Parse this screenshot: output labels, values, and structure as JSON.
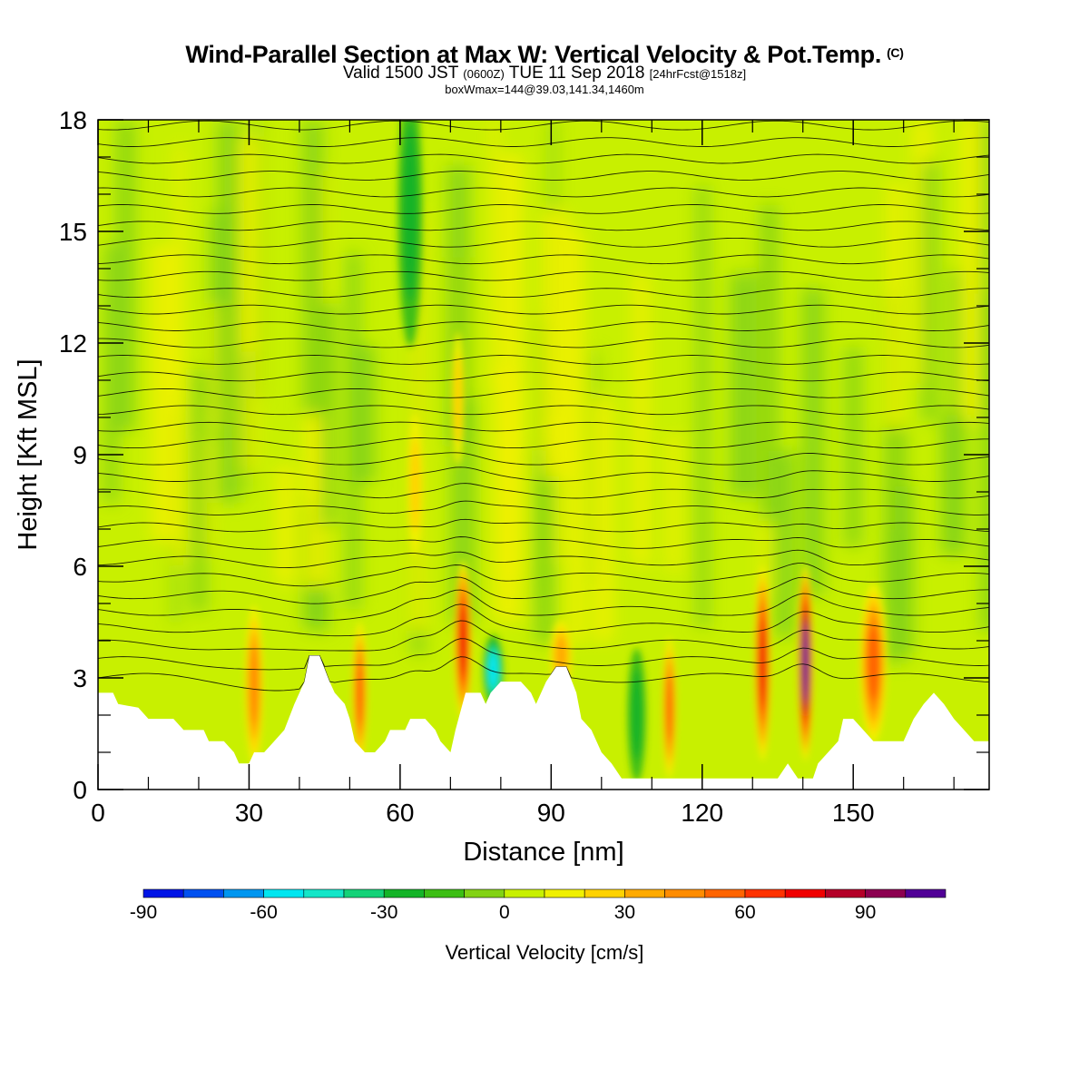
{
  "title": {
    "main": "Wind-Parallel Section at Max W: Vertical Velocity & Pot.Temp.",
    "copyright": "(C)",
    "valid_prefix": "Valid 1500 JST",
    "valid_z": "(0600Z)",
    "valid_date": "TUE 11 Sep 2018",
    "fcst": "[24hrFcst@1518z]",
    "box": "boxWmax=144@39.03,141.34,1460m"
  },
  "chart_data": {
    "type": "heatmap",
    "xlabel": "Distance [nm]",
    "ylabel": "Height [Kft MSL]",
    "xlim": [
      0,
      177
    ],
    "ylim": [
      0,
      18
    ],
    "xticks": [
      0,
      30,
      60,
      90,
      120,
      150
    ],
    "yticks": [
      0,
      3,
      6,
      9,
      12,
      15,
      18
    ],
    "colorbar": {
      "label": "Vertical Velocity [cm/s]",
      "ticks": [
        -90,
        -60,
        -30,
        0,
        30,
        60,
        90
      ],
      "bins": [
        -90,
        -80,
        -70,
        -60,
        -50,
        -40,
        -30,
        -20,
        -10,
        0,
        10,
        20,
        30,
        40,
        50,
        60,
        70,
        80,
        90,
        100,
        110
      ],
      "colors": [
        "#0014e6",
        "#0050f0",
        "#0096f0",
        "#00e6f0",
        "#14e6c8",
        "#14d278",
        "#14b428",
        "#3cbe14",
        "#82d214",
        "#c8f000",
        "#f0f000",
        "#ffd200",
        "#ffaa00",
        "#ff8c00",
        "#ff6400",
        "#ff3200",
        "#f00000",
        "#b40028",
        "#8c0050",
        "#500096"
      ]
    },
    "terrain_kft": [
      [
        0,
        2.6
      ],
      [
        3,
        2.6
      ],
      [
        4,
        2.3
      ],
      [
        8,
        2.2
      ],
      [
        10,
        1.9
      ],
      [
        15,
        1.9
      ],
      [
        17,
        1.6
      ],
      [
        21,
        1.6
      ],
      [
        22,
        1.3
      ],
      [
        25,
        1.3
      ],
      [
        27,
        1.0
      ],
      [
        28,
        0.7
      ],
      [
        30,
        0.7
      ],
      [
        31,
        1.0
      ],
      [
        33,
        1.0
      ],
      [
        35,
        1.3
      ],
      [
        37,
        1.6
      ],
      [
        39,
        2.3
      ],
      [
        41,
        2.9
      ],
      [
        42,
        3.6
      ],
      [
        44,
        3.6
      ],
      [
        46,
        2.9
      ],
      [
        47,
        2.6
      ],
      [
        49,
        2.3
      ],
      [
        50,
        1.9
      ],
      [
        51,
        1.3
      ],
      [
        53,
        1.0
      ],
      [
        55,
        1.0
      ],
      [
        57,
        1.3
      ],
      [
        58,
        1.6
      ],
      [
        61,
        1.6
      ],
      [
        62,
        1.9
      ],
      [
        65,
        1.9
      ],
      [
        67,
        1.6
      ],
      [
        68,
        1.3
      ],
      [
        70,
        1.0
      ],
      [
        71,
        1.6
      ],
      [
        73,
        2.6
      ],
      [
        76,
        2.6
      ],
      [
        77,
        2.3
      ],
      [
        78,
        2.6
      ],
      [
        80,
        2.9
      ],
      [
        84,
        2.9
      ],
      [
        86,
        2.6
      ],
      [
        87,
        2.3
      ],
      [
        89,
        2.9
      ],
      [
        91,
        3.3
      ],
      [
        93,
        3.3
      ],
      [
        95,
        2.6
      ],
      [
        96,
        1.9
      ],
      [
        98,
        1.6
      ],
      [
        100,
        1.0
      ],
      [
        102,
        0.7
      ],
      [
        104,
        0.3
      ],
      [
        122,
        0.3
      ],
      [
        135,
        0.3
      ],
      [
        137,
        0.7
      ],
      [
        139,
        0.3
      ],
      [
        142,
        0.3
      ],
      [
        143,
        0.7
      ],
      [
        145,
        1.0
      ],
      [
        147,
        1.3
      ],
      [
        148,
        1.9
      ],
      [
        150,
        1.9
      ],
      [
        152,
        1.6
      ],
      [
        154,
        1.3
      ],
      [
        160,
        1.3
      ],
      [
        162,
        1.9
      ],
      [
        164,
        2.3
      ],
      [
        166,
        2.6
      ],
      [
        168,
        2.3
      ],
      [
        170,
        1.9
      ],
      [
        172,
        1.6
      ],
      [
        174,
        1.3
      ],
      [
        177,
        1.3
      ]
    ],
    "updraft_cores": [
      {
        "x": 31,
        "z": 2.8,
        "w": 45,
        "x_half_width": 1.5,
        "z_half_height": 1.8
      },
      {
        "x": 52,
        "z": 2.6,
        "w": 50,
        "x_half_width": 1.2,
        "z_half_height": 1.6
      },
      {
        "x": 72.5,
        "z": 4.0,
        "w": 70,
        "x_half_width": 1.4,
        "z_half_height": 1.8
      },
      {
        "x": 113.5,
        "z": 2.2,
        "w": 55,
        "x_half_width": 1.1,
        "z_half_height": 1.6
      },
      {
        "x": 132,
        "z": 3.4,
        "w": 70,
        "x_half_width": 1.3,
        "z_half_height": 2.2
      },
      {
        "x": 140.5,
        "z": 3.4,
        "w": 100,
        "x_half_width": 1.2,
        "z_half_height": 2.2
      },
      {
        "x": 154,
        "z": 3.4,
        "w": 50,
        "x_half_width": 2.2,
        "z_half_height": 1.8
      },
      {
        "x": 92,
        "z": 3.6,
        "w": 30,
        "x_half_width": 1.8,
        "z_half_height": 0.8
      },
      {
        "x": 63,
        "z": 8.2,
        "w": 20,
        "x_half_width": 1.2,
        "z_half_height": 1.6
      },
      {
        "x": 71.5,
        "z": 10.5,
        "w": 25,
        "x_half_width": 1.0,
        "z_half_height": 1.5
      }
    ],
    "downdraft_cores": [
      {
        "x": 78.5,
        "z": 3.2,
        "w": -55,
        "x_half_width": 1.6,
        "z_half_height": 0.8
      },
      {
        "x": 62,
        "z": 15.5,
        "w": -25,
        "x_half_width": 2.0,
        "z_half_height": 3.0
      },
      {
        "x": 107,
        "z": 2.0,
        "w": -25,
        "x_half_width": 1.5,
        "z_half_height": 1.5
      }
    ],
    "isentropes": {
      "min_kft": 3.0,
      "max_kft": 18.0,
      "spacing_kft": 0.45
    }
  }
}
